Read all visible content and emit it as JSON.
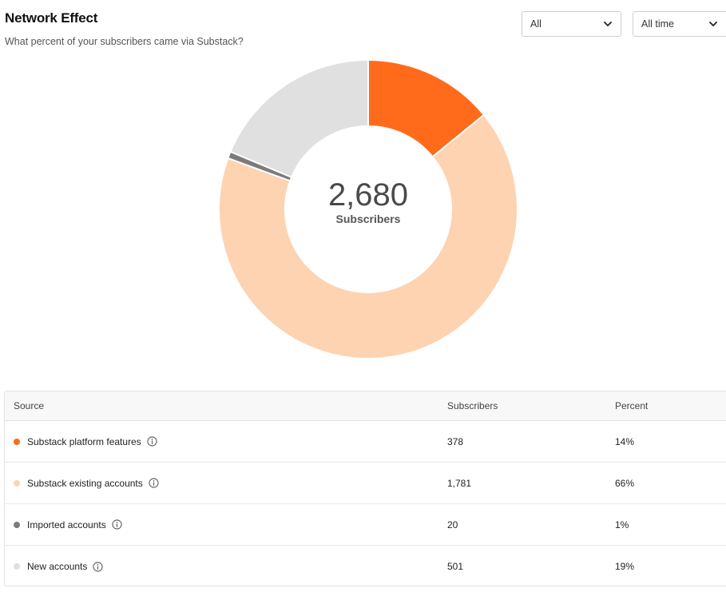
{
  "header": {
    "title": "Network Effect",
    "subtitle": "What percent of your subscribers came via Substack?"
  },
  "filters": {
    "source_filter": "All",
    "time_filter": "All time"
  },
  "chart_data": {
    "type": "pie",
    "center_value": "2,680",
    "center_label": "Subscribers",
    "categories": [
      "Substack platform features",
      "Substack existing accounts",
      "Imported accounts",
      "New accounts"
    ],
    "values": [
      378,
      1781,
      20,
      501
    ],
    "colors": [
      "#ff6b1a",
      "#fdd3b2",
      "#7b7b7b",
      "#e0e0e0"
    ]
  },
  "table": {
    "headers": {
      "source": "Source",
      "subscribers": "Subscribers",
      "percent": "Percent"
    },
    "rows": [
      {
        "source": "Substack platform features",
        "subscribers": "378",
        "percent": "14%",
        "color": "#ff6b1a"
      },
      {
        "source": "Substack existing accounts",
        "subscribers": "1,781",
        "percent": "66%",
        "color": "#fdd3b2"
      },
      {
        "source": "Imported accounts",
        "subscribers": "20",
        "percent": "1%",
        "color": "#7b7b7b"
      },
      {
        "source": "New accounts",
        "subscribers": "501",
        "percent": "19%",
        "color": "#e0e0e0"
      }
    ]
  }
}
